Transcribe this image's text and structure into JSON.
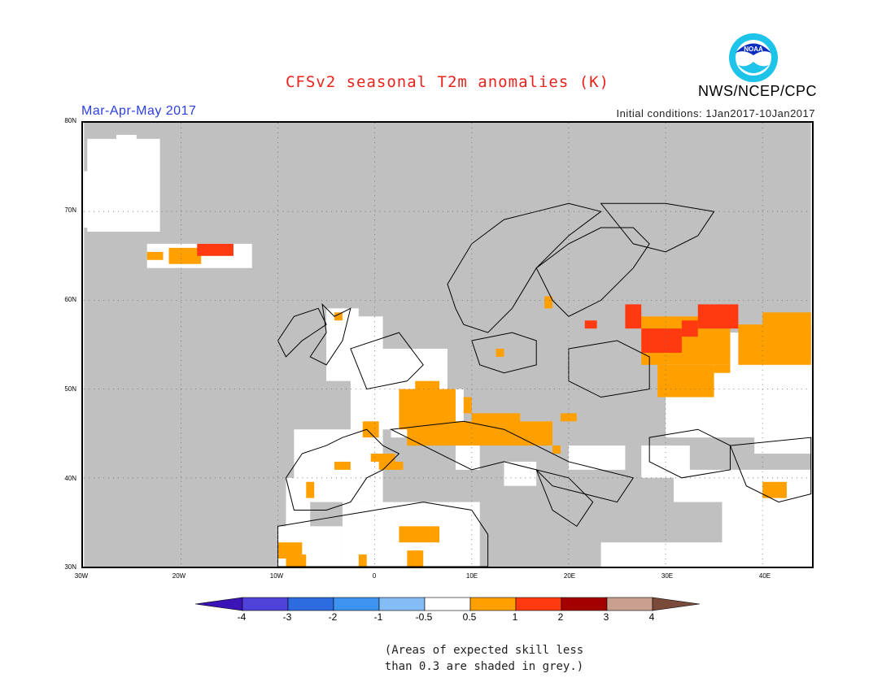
{
  "header": {
    "title": "CFSv2 seasonal T2m anomalies (K)",
    "org": "NWS/NCEP/CPC",
    "period": "Mar-Apr-May 2017",
    "initial_conditions": "Initial conditions: 1Jan2017-10Jan2017",
    "logo_text": "NOAA"
  },
  "map": {
    "region": "Europe",
    "lat_labels": [
      "80N",
      "70N",
      "60N",
      "50N",
      "40N",
      "30N"
    ],
    "lon_labels": [
      "30W",
      "20W",
      "10W",
      "0",
      "10E",
      "20E",
      "30E",
      "40E"
    ],
    "land_color": "#ffffff",
    "sea_color": "#c0c0c0",
    "coastline_color": "#000000"
  },
  "colorbar": {
    "labels": [
      "-4",
      "-3",
      "-2",
      "-1",
      "-0.5",
      "0.5",
      "1",
      "2",
      "3",
      "4"
    ],
    "colors": [
      "#3b14b8",
      "#4f42d8",
      "#2d6be0",
      "#3f93f0",
      "#84bdf5",
      "#ffffff",
      "#ffa000",
      "#ff3a10",
      "#a40000",
      "#c9a090",
      "#7a4a3a"
    ]
  },
  "legend_colors": {
    "grey_skill": "#c0c0c0",
    "anomaly_05_1": "#ffa000",
    "anomaly_1_2": "#ff3a10"
  },
  "footnote": {
    "line1": "(Areas of expected skill less",
    "line2": "than 0.3 are shaded in grey.)"
  }
}
